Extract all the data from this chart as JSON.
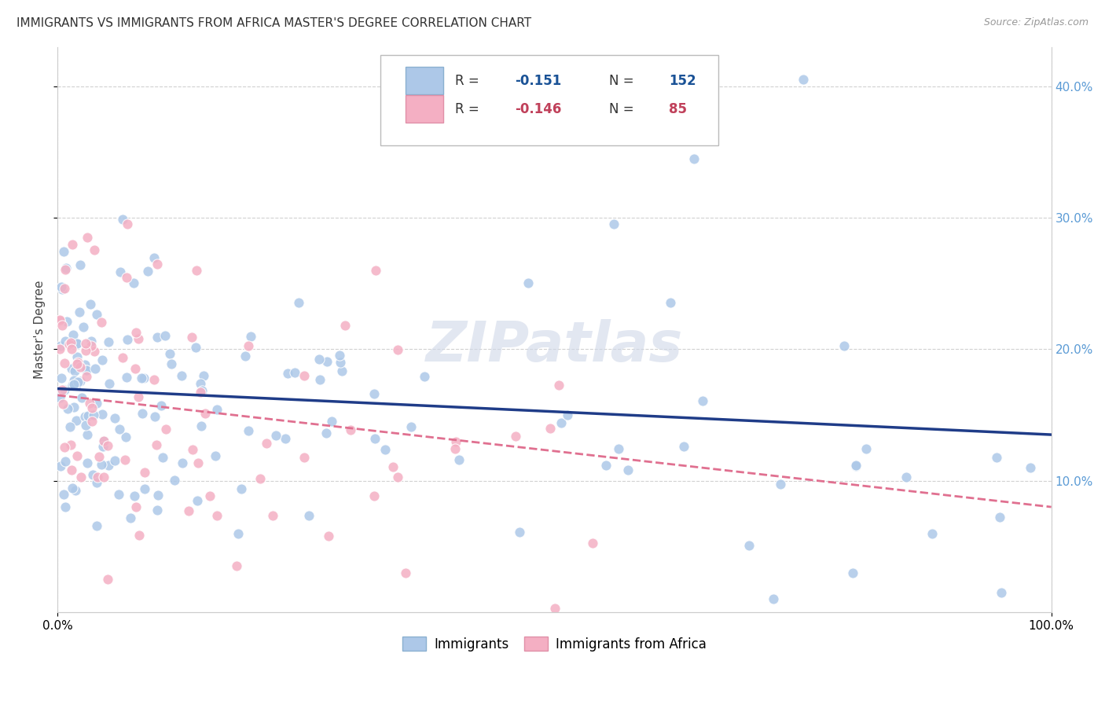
{
  "title": "IMMIGRANTS VS IMMIGRANTS FROM AFRICA MASTER'S DEGREE CORRELATION CHART",
  "source": "Source: ZipAtlas.com",
  "ylabel": "Master's Degree",
  "watermark": "ZIPatlas",
  "legend1_label": "Immigrants",
  "legend2_label": "Immigrants from Africa",
  "R1": -0.151,
  "N1": 152,
  "R2": -0.146,
  "N2": 85,
  "color1": "#adc8e8",
  "color2": "#f4afc3",
  "trendline1_color": "#1f3c88",
  "trendline2_color": "#e07090",
  "background_color": "#ffffff",
  "xlim": [
    0,
    100
  ],
  "ylim": [
    0,
    43
  ],
  "ytick_vals": [
    10,
    20,
    30,
    40
  ],
  "ytick_labels": [
    "10.0%",
    "20.0%",
    "30.0%",
    "40.0%"
  ],
  "xtick_vals": [
    0,
    100
  ],
  "xtick_labels": [
    "0.0%",
    "100.0%"
  ],
  "title_fontsize": 11,
  "axis_label_fontsize": 11,
  "tick_fontsize": 11,
  "trendline1_x0": 0,
  "trendline1_y0": 17.0,
  "trendline1_x1": 100,
  "trendline1_y1": 13.5,
  "trendline2_x0": 0,
  "trendline2_y0": 16.5,
  "trendline2_x1": 100,
  "trendline2_y1": 8.0
}
